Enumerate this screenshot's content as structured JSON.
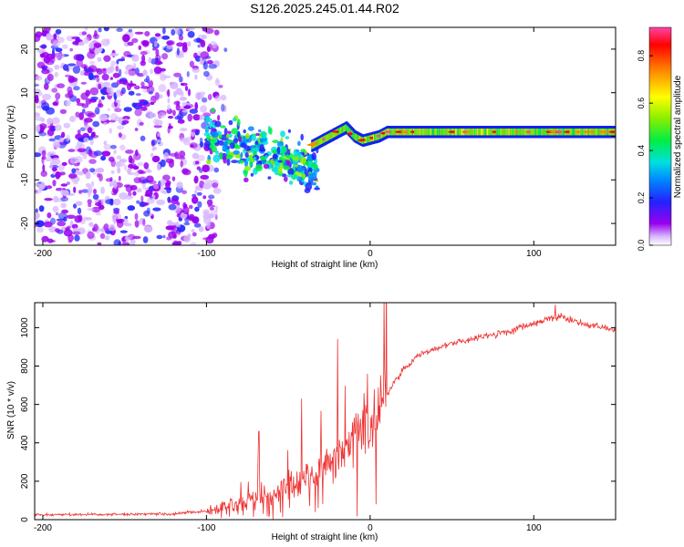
{
  "title": "S126.2025.245.01.44.R02",
  "chart_data": [
    {
      "id": "spectrogram",
      "type": "heatmap",
      "xlabel": "Height of straight line (km)",
      "ylabel": "Frequency (Hz)",
      "xlim": [
        -205,
        150
      ],
      "ylim": [
        -25,
        25
      ],
      "xticks": [
        -200,
        -100,
        0,
        100
      ],
      "yticks": [
        -20,
        -10,
        0,
        10,
        20
      ],
      "colorbar": {
        "label": "Normalized spectral amplitude",
        "range": [
          0,
          0.92
        ],
        "ticks": [
          "0.0",
          "0.2",
          "0.4",
          "0.6",
          "0.8"
        ],
        "tick_values": [
          0,
          0.2,
          0.4,
          0.6,
          0.8
        ]
      },
      "regions": [
        {
          "name": "noise",
          "x": [
            -205,
            -95
          ],
          "freq": [
            -25,
            25
          ],
          "amplitude": [
            0.02,
            0.15
          ]
        },
        {
          "name": "transition",
          "x": [
            -100,
            -30
          ],
          "freq": [
            -15,
            6
          ],
          "amplitude": [
            0.1,
            0.5
          ]
        },
        {
          "name": "signal",
          "x": [
            -30,
            150
          ],
          "freq": [
            -1,
            1.5
          ],
          "amplitude": [
            0.3,
            0.9
          ]
        }
      ],
      "signal_center_freq": [
        {
          "x": -35,
          "f": -2
        },
        {
          "x": -25,
          "f": 0
        },
        {
          "x": -15,
          "f": 2
        },
        {
          "x": -10,
          "f": 0
        },
        {
          "x": -5,
          "f": -1
        },
        {
          "x": 5,
          "f": 0
        },
        {
          "x": 10,
          "f": 1
        },
        {
          "x": 150,
          "f": 1
        }
      ]
    },
    {
      "id": "snr",
      "type": "line",
      "xlabel": "Height of straight line (km)",
      "ylabel": "SNR (10 * v/v)",
      "xlim": [
        -205,
        150
      ],
      "ylim": [
        0,
        1130
      ],
      "xticks": [
        -200,
        -100,
        0,
        100
      ],
      "yticks": [
        0,
        200,
        400,
        600,
        800,
        1000
      ],
      "color": "#ee3333",
      "trend": [
        {
          "x": -205,
          "y": 25
        },
        {
          "x": -120,
          "y": 30
        },
        {
          "x": -100,
          "y": 45
        },
        {
          "x": -80,
          "y": 90
        },
        {
          "x": -60,
          "y": 140
        },
        {
          "x": -40,
          "y": 200
        },
        {
          "x": -20,
          "y": 320
        },
        {
          "x": -10,
          "y": 420
        },
        {
          "x": 0,
          "y": 520
        },
        {
          "x": 10,
          "y": 650
        },
        {
          "x": 20,
          "y": 780
        },
        {
          "x": 30,
          "y": 860
        },
        {
          "x": 50,
          "y": 920
        },
        {
          "x": 80,
          "y": 970
        },
        {
          "x": 100,
          "y": 1020
        },
        {
          "x": 115,
          "y": 1060
        },
        {
          "x": 130,
          "y": 1020
        },
        {
          "x": 150,
          "y": 990
        }
      ],
      "spikes": [
        {
          "x": -20,
          "y": 940
        },
        {
          "x": -42,
          "y": 630
        },
        {
          "x": -68,
          "y": 460
        },
        {
          "x": 113,
          "y": 1120
        }
      ]
    }
  ]
}
